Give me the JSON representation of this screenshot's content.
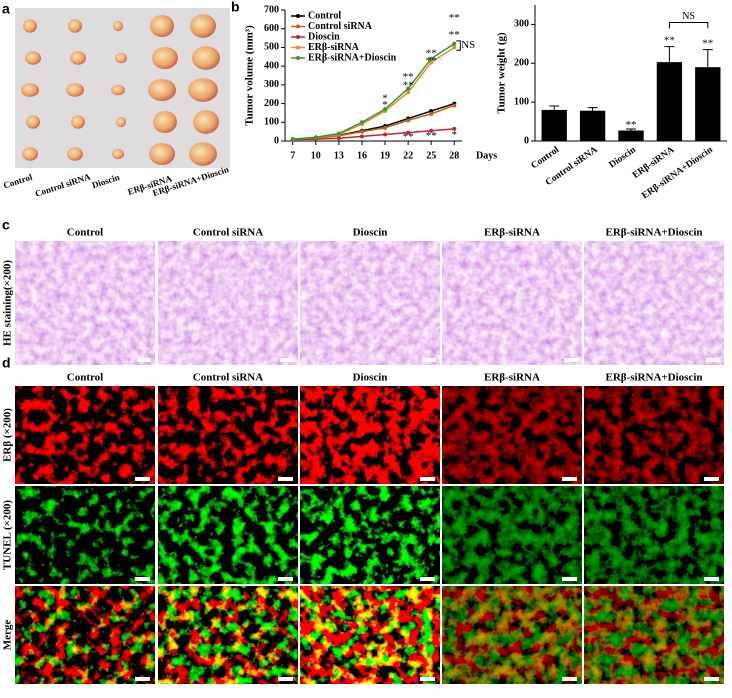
{
  "panel_labels": [
    "a",
    "b",
    "c",
    "d"
  ],
  "panel_a": {
    "groups": [
      "Control",
      "Control siRNA",
      "Dioscin",
      "ERβ-siRNA",
      "ERβ-siRNA+Dioscin"
    ]
  },
  "chart_data": [
    {
      "type": "line",
      "ylabel": "Tumor volume (mm³)",
      "xlabel": "Days",
      "x": [
        7,
        10,
        13,
        16,
        19,
        22,
        25,
        28
      ],
      "xlim": [
        6,
        29
      ],
      "xticks": [
        7,
        10,
        13,
        16,
        19,
        22,
        25,
        28
      ],
      "ylim": [
        0,
        700
      ],
      "yticks": [
        0,
        100,
        200,
        300,
        400,
        500,
        600,
        700
      ],
      "series": [
        {
          "name": "Control",
          "color": "#000000",
          "values": [
            10,
            15,
            30,
            55,
            80,
            120,
            160,
            200
          ]
        },
        {
          "name": "Control siRNA",
          "color": "#b8651a",
          "values": [
            10,
            15,
            28,
            50,
            70,
            110,
            145,
            190
          ]
        },
        {
          "name": "Dioscin",
          "color": "#c0282a",
          "values": [
            8,
            10,
            15,
            25,
            35,
            45,
            55,
            65
          ]
        },
        {
          "name": "ERβ-siRNA",
          "color": "#f08a24",
          "values": [
            10,
            18,
            35,
            90,
            160,
            260,
            420,
            500
          ]
        },
        {
          "name": "ERβ-siRNA+Dioscin",
          "color": "#2e9a3a",
          "values": [
            10,
            20,
            40,
            100,
            170,
            280,
            440,
            520
          ]
        }
      ],
      "annotations": [
        {
          "text": "*",
          "x": 19,
          "y": 225
        },
        {
          "text": "*",
          "x": 19,
          "y": 190
        },
        {
          "text": "**",
          "x": 22,
          "y": 340
        },
        {
          "text": "**",
          "x": 22,
          "y": 295
        },
        {
          "text": "**",
          "x": 22,
          "y": 20
        },
        {
          "text": "**",
          "x": 25,
          "y": 465
        },
        {
          "text": "**",
          "x": 25,
          "y": 425
        },
        {
          "text": "**",
          "x": 25,
          "y": 25
        },
        {
          "text": "**",
          "x": 28,
          "y": 655
        },
        {
          "text": "**",
          "x": 28,
          "y": 565
        },
        {
          "text": "*",
          "x": 28,
          "y": 30
        },
        {
          "text": "NS",
          "x": 28.9,
          "y": 510
        }
      ]
    },
    {
      "type": "bar",
      "ylabel": "Tumor weight (g)",
      "categories": [
        "Control",
        "Control siRNA",
        "Dioscin",
        "ERβ-siRNA",
        "ERβ-siRNA+Dioscin"
      ],
      "values": [
        80,
        78,
        27,
        203,
        190
      ],
      "errors": [
        10,
        8,
        4,
        40,
        45
      ],
      "color": "#000000",
      "ylim": [
        0,
        350
      ],
      "yticks": [
        0,
        100,
        200,
        300
      ],
      "annotations": [
        {
          "text": "**",
          "category": 2,
          "y": 40
        },
        {
          "text": "**",
          "category": 3,
          "y": 258
        },
        {
          "text": "**",
          "category": 4,
          "y": 250
        },
        {
          "text": "NS",
          "category": 3.5,
          "y": 320
        }
      ]
    }
  ],
  "panel_c": {
    "row_label": "HE staining(×200)",
    "columns": [
      "Control",
      "Control siRNA",
      "Dioscin",
      "ERβ-siRNA",
      "ERβ-siRNA+Dioscin"
    ]
  },
  "panel_d": {
    "columns": [
      "Control",
      "Control siRNA",
      "Dioscin",
      "ERβ-siRNA",
      "ERβ-siRNA+Dioscin"
    ],
    "row_labels": [
      "ERβ (×200)",
      "TUNEL (×200)",
      "Merge"
    ]
  }
}
